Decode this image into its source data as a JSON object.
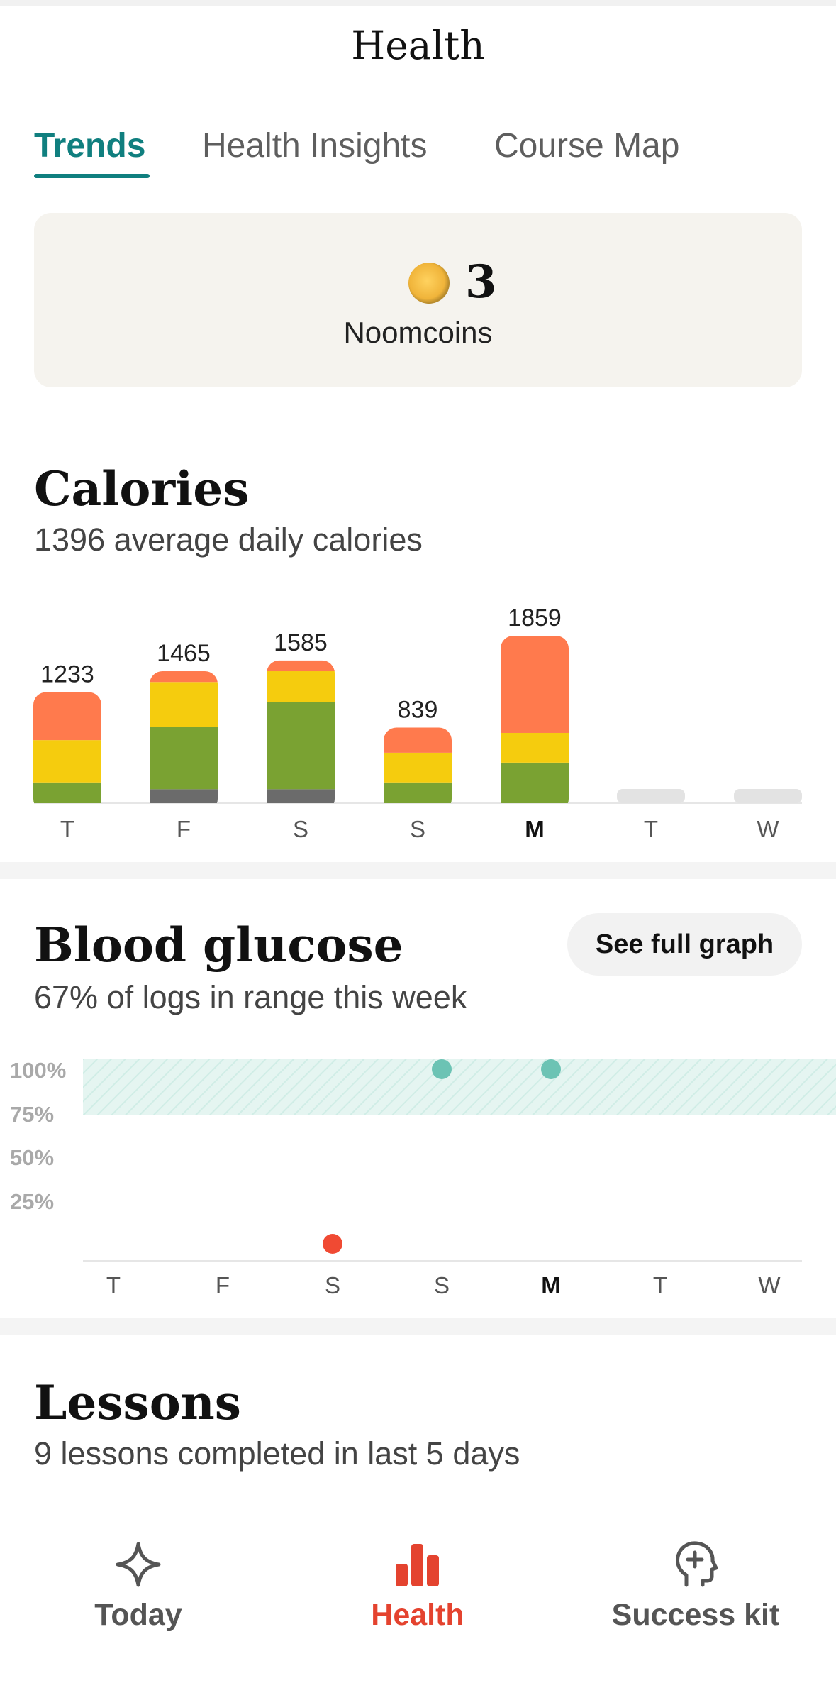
{
  "header": {
    "title": "Health"
  },
  "tabs": [
    {
      "label": "Trends",
      "active": true
    },
    {
      "label": "Health Insights",
      "active": false
    },
    {
      "label": "Course Map",
      "active": false
    }
  ],
  "noomcoins": {
    "count": "3",
    "label": "Noomcoins"
  },
  "calories": {
    "title": "Calories",
    "subtitle": "1396 average daily calories",
    "chart_data": {
      "type": "bar",
      "stacked": true,
      "categories": [
        "T",
        "F",
        "S",
        "S",
        "M",
        "T",
        "W"
      ],
      "highlight_category_index": 4,
      "totals": [
        "1233",
        "1465",
        "1585",
        "839",
        "1859",
        "",
        ""
      ],
      "series": [
        {
          "color": "#6b6b6b",
          "values": [
            0,
            155,
            155,
            0,
            0,
            0,
            0
          ]
        },
        {
          "color": "#7aa232",
          "values": [
            230,
            690,
            970,
            230,
            450,
            0,
            0
          ]
        },
        {
          "color": "#f5cc0e",
          "values": [
            470,
            500,
            340,
            330,
            330,
            0,
            0
          ]
        },
        {
          "color": "#ff7a4d",
          "values": [
            533,
            120,
            120,
            279,
            1079,
            0,
            0
          ]
        }
      ],
      "ylim": [
        0,
        1859
      ]
    }
  },
  "glucose": {
    "title": "Blood glucose",
    "subtitle": "67% of logs in range this week",
    "button": "See full graph",
    "chart_data": {
      "type": "scatter",
      "categories": [
        "T",
        "F",
        "S",
        "S",
        "M",
        "T",
        "W"
      ],
      "highlight_category_index": 4,
      "y_ticks": [
        "100%",
        "75%",
        "50%",
        "25%"
      ],
      "target_range": [
        75,
        100
      ],
      "points": [
        {
          "category_index": 2,
          "y": 4,
          "in_range": false
        },
        {
          "category_index": 3,
          "y": 100,
          "in_range": true
        },
        {
          "category_index": 4,
          "y": 100,
          "in_range": true
        }
      ],
      "colors": {
        "in_range": "#6cc3b4",
        "out_of_range": "#f04a33",
        "range_fill": "#e5f5f1"
      }
    }
  },
  "lessons": {
    "title": "Lessons",
    "subtitle": "9 lessons completed in last 5 days"
  },
  "nav": {
    "items": [
      {
        "label": "Today",
        "icon": "sparkle-icon",
        "active": false
      },
      {
        "label": "Health",
        "icon": "bar-chart-icon",
        "active": true
      },
      {
        "label": "Success kit",
        "icon": "head-plus-icon",
        "active": false
      }
    ],
    "active_color": "#e4432f",
    "inactive_color": "#555555"
  }
}
